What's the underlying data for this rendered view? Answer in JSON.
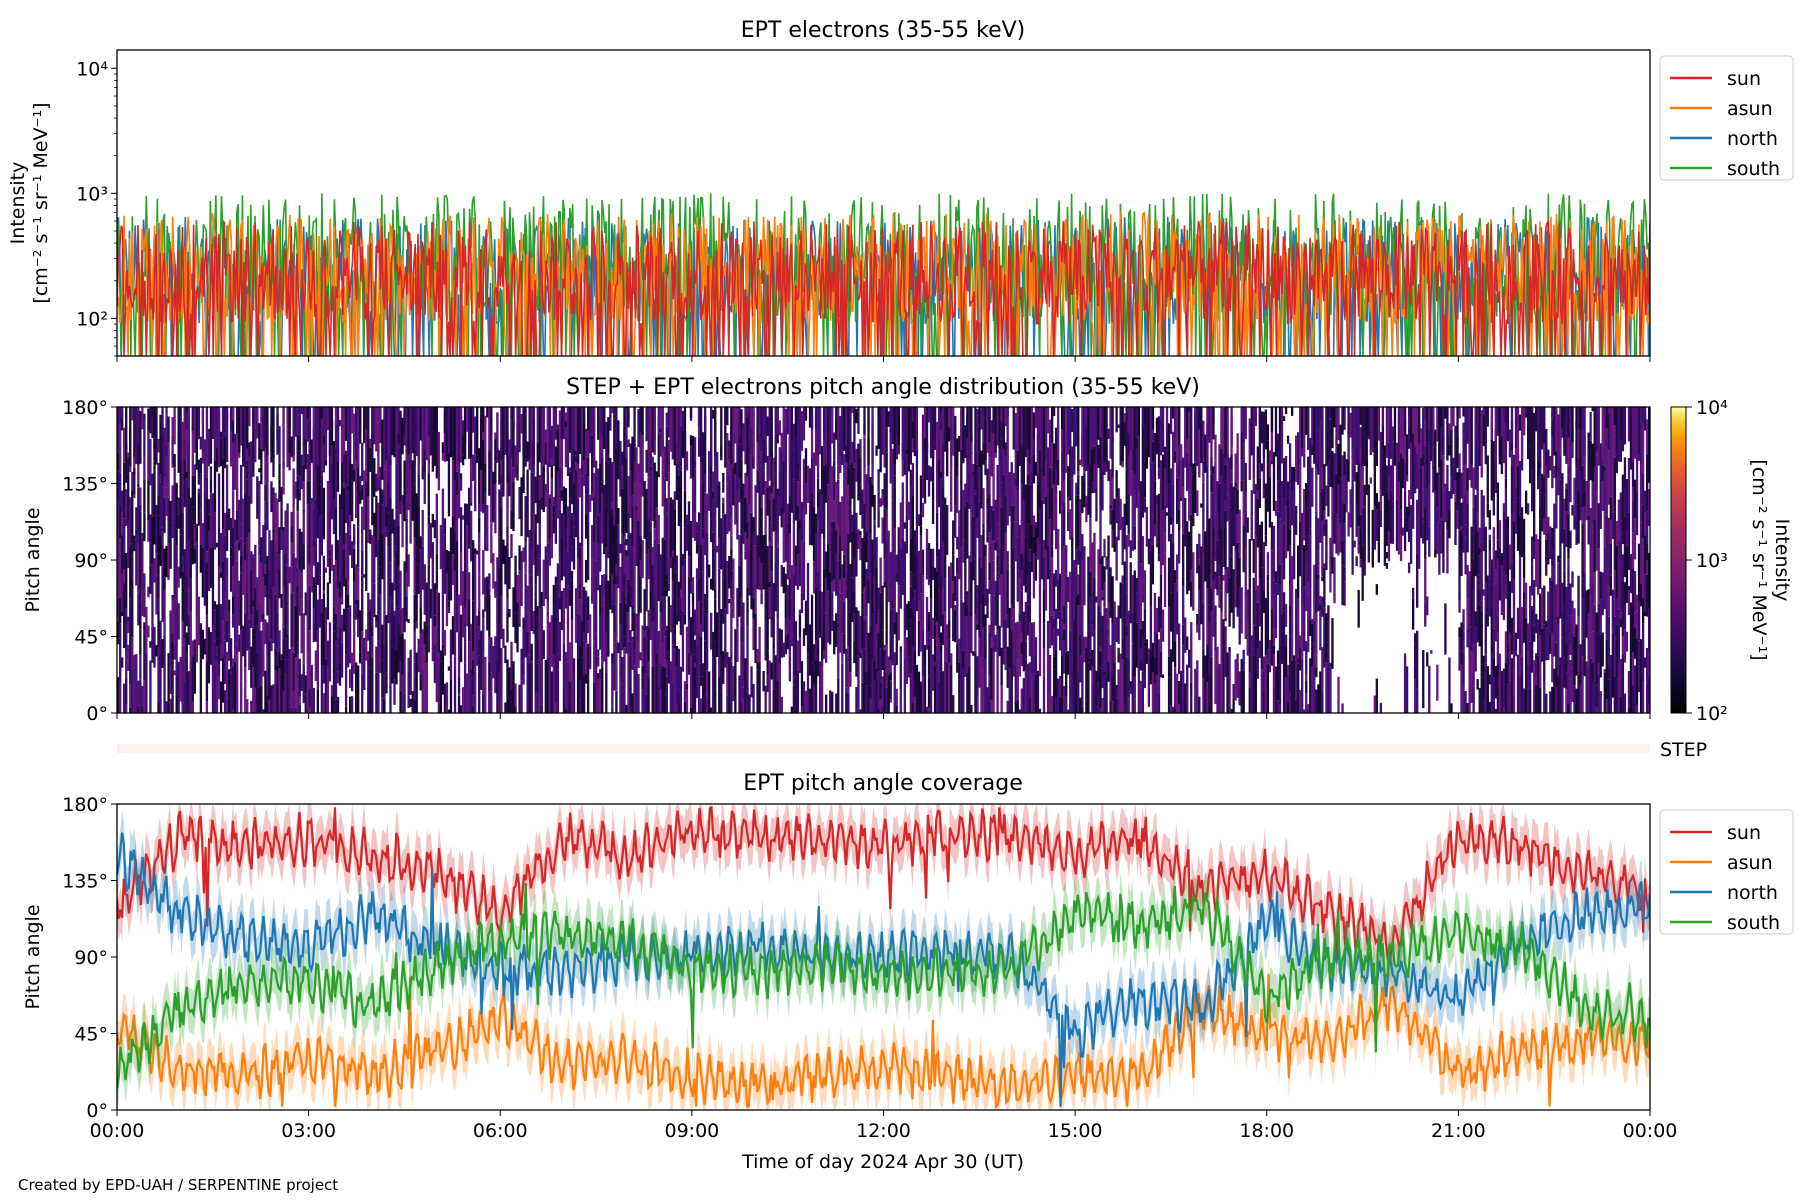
{
  "footer_text": "Created by EPD-UAH / SERPENTINE project",
  "colors": {
    "sun": "#d62728",
    "asun": "#ff7f0e",
    "north": "#1f77b4",
    "south": "#2ca02c"
  },
  "chart_data": [
    {
      "type": "line",
      "title": "EPT electrons (35-55 keV)",
      "ylabel_line1": "Intensity",
      "ylabel_line2": "[cm⁻² s⁻¹ sr⁻¹ MeV⁻¹]",
      "yscale": "log",
      "ylim": [
        50,
        14000
      ],
      "yticks": [
        {
          "value": 100,
          "label": "10²"
        },
        {
          "value": 1000,
          "label": "10³"
        },
        {
          "value": 10000,
          "label": "10⁴"
        }
      ],
      "legend_position": "outside-right",
      "series": [
        {
          "name": "sun",
          "typical_range": [
            50,
            600
          ]
        },
        {
          "name": "asun",
          "typical_range": [
            50,
            700
          ]
        },
        {
          "name": "north",
          "typical_range": [
            50,
            650
          ]
        },
        {
          "name": "south",
          "typical_range": [
            50,
            1000
          ]
        }
      ]
    },
    {
      "type": "heatmap",
      "title": "STEP + EPT electrons pitch angle distribution (35-55 keV)",
      "ylabel": "Pitch angle",
      "ylim": [
        0,
        180
      ],
      "yticks": [
        "0°",
        "45°",
        "90°",
        "135°",
        "180°"
      ],
      "colorbar": {
        "label_line1": "Intensity",
        "label_line2": "[cm⁻² s⁻¹ sr⁻¹ MeV⁻¹]",
        "scale": "log",
        "range": [
          100,
          10000
        ],
        "ticks": [
          "10²",
          "10³",
          "10⁴"
        ],
        "colormap": "inferno"
      }
    },
    {
      "type": "bar",
      "label": "STEP"
    },
    {
      "type": "line",
      "title": "EPT pitch angle coverage",
      "ylabel": "Pitch angle",
      "ylim": [
        0,
        180
      ],
      "yticks": [
        "0°",
        "45°",
        "90°",
        "135°",
        "180°"
      ],
      "xlabel": "Time of day 2024 Apr 30 (UT)",
      "xticks": [
        "00:00",
        "03:00",
        "06:00",
        "09:00",
        "12:00",
        "15:00",
        "18:00",
        "21:00",
        "00:00"
      ],
      "xlim_hours": [
        0,
        24
      ],
      "legend_position": "outside-right",
      "series": [
        {
          "name": "sun",
          "x_hours": [
            0,
            1,
            2,
            3,
            4,
            5,
            6,
            7,
            8,
            9,
            10,
            11,
            12,
            13,
            14,
            15,
            16,
            17,
            18,
            19,
            20,
            21,
            22,
            23,
            24
          ],
          "values": [
            120,
            160,
            155,
            160,
            150,
            140,
            115,
            160,
            150,
            165,
            160,
            160,
            155,
            165,
            160,
            150,
            160,
            130,
            140,
            115,
            100,
            160,
            155,
            140,
            130
          ]
        },
        {
          "name": "asun",
          "x_hours": [
            0,
            1,
            2,
            3,
            4,
            5,
            6,
            7,
            8,
            9,
            10,
            11,
            12,
            13,
            14,
            15,
            16,
            17,
            18,
            19,
            20,
            21,
            22,
            23,
            24
          ],
          "values": [
            50,
            25,
            20,
            30,
            20,
            35,
            55,
            25,
            30,
            20,
            15,
            20,
            25,
            20,
            15,
            20,
            20,
            60,
            45,
            40,
            65,
            20,
            35,
            40,
            40
          ]
        },
        {
          "name": "north",
          "x_hours": [
            0,
            1,
            2,
            3,
            4,
            5,
            6,
            7,
            8,
            9,
            10,
            11,
            12,
            13,
            14,
            15,
            16,
            17,
            18,
            19,
            20,
            21,
            22,
            23,
            24
          ],
          "values": [
            150,
            115,
            100,
            95,
            115,
            95,
            85,
            80,
            90,
            90,
            95,
            90,
            90,
            95,
            90,
            45,
            65,
            60,
            110,
            85,
            80,
            65,
            100,
            115,
            120
          ]
        },
        {
          "name": "south",
          "x_hours": [
            0,
            1,
            2,
            3,
            4,
            5,
            6,
            7,
            8,
            9,
            10,
            11,
            12,
            13,
            14,
            15,
            16,
            17,
            18,
            19,
            20,
            21,
            22,
            23,
            24
          ],
          "values": [
            25,
            60,
            75,
            75,
            60,
            85,
            100,
            105,
            100,
            85,
            80,
            85,
            80,
            80,
            85,
            115,
            110,
            120,
            65,
            90,
            90,
            105,
            95,
            60,
            50
          ]
        }
      ]
    }
  ]
}
